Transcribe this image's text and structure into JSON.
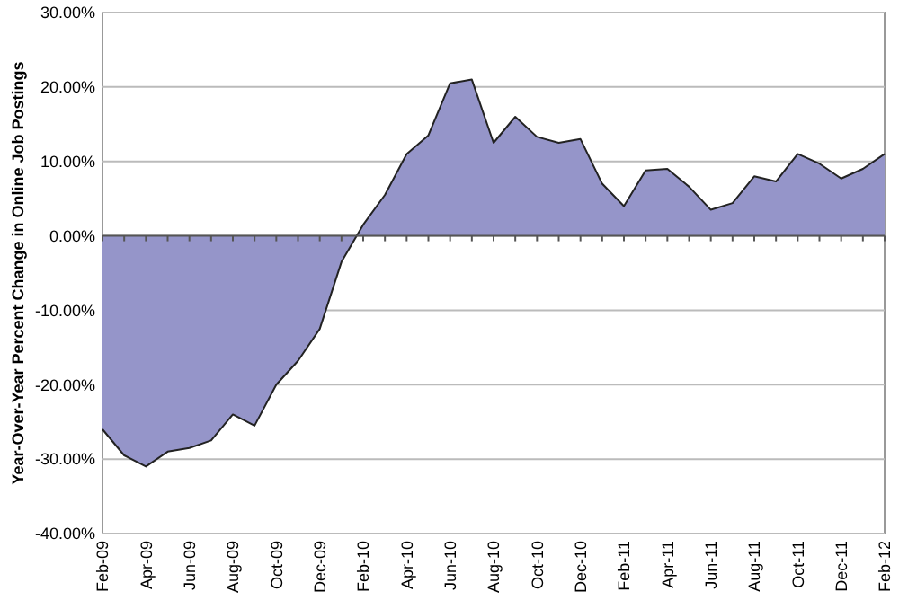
{
  "chart_data": {
    "type": "area",
    "ylabel": "Year-Over-Year Percent Change in Online Job Postings",
    "categories": [
      "Feb-09",
      null,
      "Apr-09",
      null,
      "Jun-09",
      null,
      "Aug-09",
      null,
      "Oct-09",
      null,
      "Dec-09",
      null,
      "Feb-10",
      null,
      "Apr-10",
      null,
      "Jun-10",
      null,
      "Aug-10",
      null,
      "Oct-10",
      null,
      "Dec-10",
      null,
      "Feb-11",
      null,
      "Apr-11",
      null,
      "Jun-11",
      null,
      "Aug-11",
      null,
      "Oct-11",
      null,
      "Dec-11",
      null,
      "Feb-12"
    ],
    "series": [
      {
        "color": "#9595c9",
        "values": [
          -26,
          -29.5,
          -31,
          -29,
          -28.5,
          -27.5,
          -24,
          -25.5,
          -20,
          -16.8,
          -12.5,
          -3.5,
          1.5,
          5.5,
          11,
          13.5,
          20.5,
          21,
          12.5,
          16,
          13.3,
          12.5,
          13,
          7,
          4,
          8.8,
          9,
          6.6,
          3.5,
          4.4,
          8,
          7.3,
          11,
          9.7,
          7.7,
          9,
          11
        ]
      }
    ],
    "ylim": [
      -40,
      30
    ],
    "yticks": [
      {
        "value": -40,
        "label": "-40.00%"
      },
      {
        "value": -30,
        "label": "-30.00%"
      },
      {
        "value": -20,
        "label": "-20.00%"
      },
      {
        "value": -10,
        "label": "-10.00%"
      },
      {
        "value": 0,
        "label": "0.00%"
      },
      {
        "value": 10,
        "label": "10.00%"
      },
      {
        "value": 20,
        "label": "20.00%"
      },
      {
        "value": 30,
        "label": "30.00%"
      }
    ],
    "grid": "y"
  }
}
